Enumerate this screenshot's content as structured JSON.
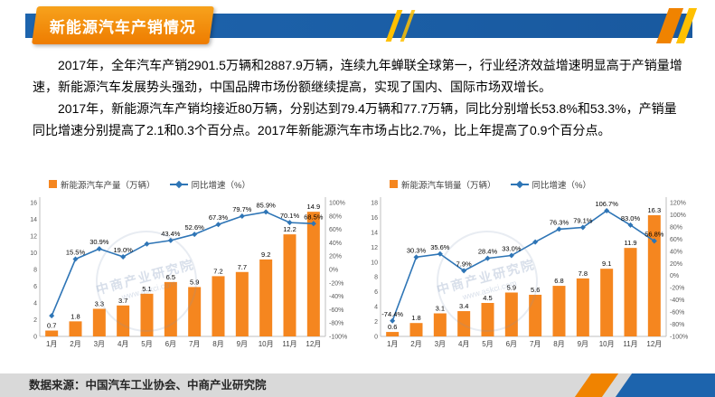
{
  "page": {
    "title": "新能源汽车产销情况"
  },
  "footer": {
    "text": "数据来源：中国汽车工业协会、中商产业研究院"
  },
  "watermark": {
    "line1": "中商产业研究院",
    "line2": "www.askci.com"
  },
  "paragraphs": [
    "2017年，全年汽车产销2901.5万辆和2887.9万辆，连续九年蝉联全球第一，行业经济效益增速明显高于产销量增速，新能源汽车发展势头强劲，中国品牌市场份额继续提高，实现了国内、国际市场双增长。",
    "2017年，新能源汽车产销均接近80万辆，分别达到79.4万辆和77.7万辆，同比分别增长53.8%和53.3%，产销量同比增速分别提高了2.1和0.3个百分点。2017年新能源汽车市场占比2.7%，比上年提高了0.9个百分点。"
  ],
  "colors": {
    "bar": "#f5861f",
    "line": "#2e75b6",
    "header_blue": "#1d64ad",
    "header_orange": "#f08300",
    "accent_yellow": "#ffc000",
    "footer_gray": "#d9d9d9"
  },
  "chart_data": [
    {
      "type": "bar",
      "combo": "bar+line",
      "title": "",
      "legend": [
        "新能源汽车产量（万辆）",
        "同比增速（%）"
      ],
      "categories": [
        "1月",
        "2月",
        "3月",
        "4月",
        "5月",
        "6月",
        "7月",
        "8月",
        "9月",
        "10月",
        "11月",
        "12月"
      ],
      "series": [
        {
          "name": "新能源汽车产量（万辆）",
          "kind": "bar",
          "values": [
            0.7,
            1.8,
            3.3,
            3.7,
            5.1,
            6.5,
            5.9,
            7.2,
            7.7,
            9.2,
            12.2,
            14.9
          ]
        },
        {
          "name": "同比增速（%）",
          "kind": "line",
          "values": [
            -69.1,
            15.5,
            30.9,
            19.0,
            38.2,
            43.4,
            52.6,
            67.3,
            79.7,
            85.9,
            70.1,
            68.5
          ],
          "labels": [
            "",
            "15.5%",
            "30.9%",
            "19.0%",
            "",
            "43.4%",
            "52.6%",
            "67.3%",
            "79.7%",
            "85.9%",
            "70.1%",
            "68.5%"
          ]
        }
      ],
      "bar_axis": {
        "min": 0,
        "max": 16,
        "step": 2
      },
      "pct_axis": {
        "min": -100,
        "max": 100,
        "step": 20
      },
      "legend_position": "top",
      "grid": false
    },
    {
      "type": "bar",
      "combo": "bar+line",
      "title": "",
      "legend": [
        "新能源汽车销量（万辆）",
        "同比增速（%）"
      ],
      "categories": [
        "1月",
        "2月",
        "3月",
        "4月",
        "5月",
        "6月",
        "7月",
        "8月",
        "9月",
        "10月",
        "11月",
        "12月"
      ],
      "series": [
        {
          "name": "新能源汽车销量（万辆）",
          "kind": "bar",
          "values": [
            0.6,
            1.8,
            3.1,
            3.4,
            4.5,
            5.9,
            5.6,
            6.8,
            7.8,
            9.1,
            11.9,
            16.3
          ]
        },
        {
          "name": "同比增速（%）",
          "kind": "line",
          "values": [
            -74.4,
            30.3,
            35.6,
            7.9,
            28.4,
            33.0,
            55.2,
            76.3,
            79.1,
            106.7,
            83.0,
            56.8
          ],
          "labels": [
            "-74.4%",
            "30.3%",
            "35.6%",
            "7.9%",
            "28.4%",
            "33.0%",
            "",
            "76.3%",
            "79.1%",
            "106.7%",
            "83.0%",
            "56.8%"
          ]
        }
      ],
      "bar_axis": {
        "min": 0,
        "max": 18,
        "step": 2
      },
      "pct_axis": {
        "min": -100,
        "max": 120,
        "step": 20
      },
      "legend_position": "top",
      "grid": false
    }
  ]
}
